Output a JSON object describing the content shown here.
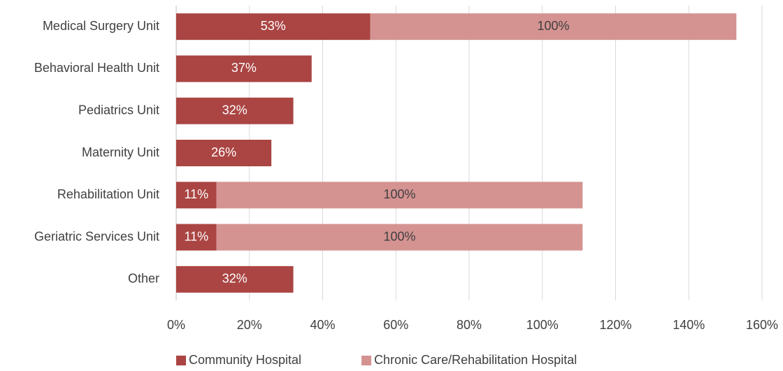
{
  "chart_data": {
    "type": "stacked-bar-horizontal",
    "categories": [
      "Medical Surgery Unit",
      "Behavioral Health Unit",
      "Pediatrics Unit",
      "Maternity Unit",
      "Rehabilitation Unit",
      "Geriatric Services Unit",
      "Other"
    ],
    "series": [
      {
        "name": "Community Hospital",
        "color": "#aa4543",
        "values": [
          53,
          37,
          32,
          26,
          11,
          11,
          32
        ],
        "value_labels": [
          "53%",
          "37%",
          "32%",
          "26%",
          "11%",
          "11%",
          "32%"
        ],
        "label_color": "#ffffff"
      },
      {
        "name": "Chronic Care/Rehabilitation Hospital",
        "color": "#d49391",
        "values": [
          100,
          null,
          null,
          null,
          100,
          100,
          null
        ],
        "value_labels": [
          "100%",
          null,
          null,
          null,
          "100%",
          "100%",
          null
        ],
        "label_color": "#404040"
      }
    ],
    "xlim": [
      0,
      160
    ],
    "xticks": [
      {
        "value": 0,
        "label": "0%"
      },
      {
        "value": 20,
        "label": "20%"
      },
      {
        "value": 40,
        "label": "40%"
      },
      {
        "value": 60,
        "label": "60%"
      },
      {
        "value": 80,
        "label": "80%"
      },
      {
        "value": 100,
        "label": "100%"
      },
      {
        "value": 120,
        "label": "120%"
      },
      {
        "value": 140,
        "label": "140%"
      },
      {
        "value": 160,
        "label": "160%"
      }
    ],
    "grid": true,
    "legend": "bottom"
  }
}
